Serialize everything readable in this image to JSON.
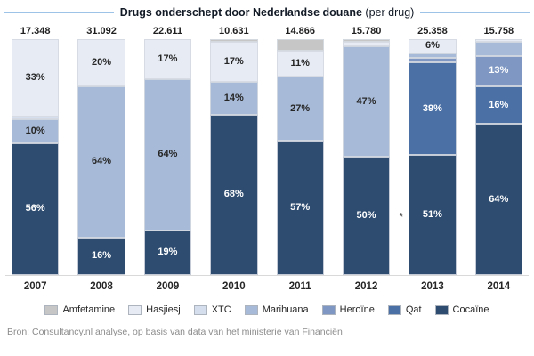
{
  "title": {
    "main": "Drugs onderschept door Nederlandse douane",
    "suffix": " (per drug)"
  },
  "source": "Bron: Consultancy.nl analyse, op basis van data van het ministerie van Financiën",
  "colors": {
    "header_rule": "#9dc3e6",
    "axis_line": "#d9d9d9",
    "label_dark": "#262626",
    "label_light": "#ffffff",
    "source_text": "#8c8c8c"
  },
  "chart_data": {
    "type": "bar",
    "stacked": true,
    "percent_stacked": true,
    "title": "Drugs onderschept door Nederlandse douane (per drug)",
    "categories": [
      "2007",
      "2008",
      "2009",
      "2010",
      "2011",
      "2012",
      "2013",
      "2014"
    ],
    "totals": [
      "17.348",
      "31.092",
      "22.611",
      "10.631",
      "14.866",
      "15.780",
      "25.358",
      "15.758"
    ],
    "legend_position": "bottom",
    "stack_order": "first series on top, last series at bottom",
    "footnote": {
      "category": "2012",
      "marker": "*"
    },
    "series": [
      {
        "name": "Amfetamine",
        "color": "#c6c6c6",
        "label_color": "#262626",
        "values": [
          0,
          0,
          0,
          1,
          5,
          1,
          0,
          0
        ],
        "labels": [
          "",
          "",
          "",
          "",
          "",
          "",
          "",
          ""
        ]
      },
      {
        "name": "Hasjiesj",
        "color": "#e6ebf4",
        "label_color": "#262626",
        "values": [
          33,
          20,
          17,
          17,
          11,
          2,
          6,
          1
        ],
        "labels": [
          "33%",
          "20%",
          "17%",
          "17%",
          "11%",
          "",
          "6%",
          ""
        ]
      },
      {
        "name": "XTC",
        "color": "#d5deec",
        "label_color": "#262626",
        "values": [
          1,
          0,
          0,
          0,
          0,
          0,
          0,
          0
        ],
        "labels": [
          "",
          "",
          "",
          "",
          "",
          "",
          "",
          ""
        ]
      },
      {
        "name": "Marihuana",
        "color": "#a7bad7",
        "label_color": "#262626",
        "values": [
          10,
          64,
          64,
          14,
          27,
          47,
          2,
          6
        ],
        "labels": [
          "10%",
          "64%",
          "64%",
          "14%",
          "27%",
          "47%",
          "",
          ""
        ]
      },
      {
        "name": "Heroïne",
        "color": "#7e97c3",
        "label_color": "#ffffff",
        "values": [
          0,
          0,
          0,
          0,
          0,
          0,
          2,
          13
        ],
        "labels": [
          "",
          "",
          "",
          "",
          "",
          "",
          "",
          "13%"
        ]
      },
      {
        "name": "Qat",
        "color": "#4a70a6",
        "label_color": "#ffffff",
        "values": [
          0,
          0,
          0,
          0,
          0,
          0,
          39,
          16
        ],
        "labels": [
          "",
          "",
          "",
          "",
          "",
          "",
          "39%",
          "16%"
        ]
      },
      {
        "name": "Cocaïne",
        "color": "#2e4c70",
        "label_color": "#ffffff",
        "values": [
          56,
          16,
          19,
          68,
          57,
          50,
          51,
          64
        ],
        "labels": [
          "56%",
          "16%",
          "19%",
          "68%",
          "57%",
          "50%",
          "51%",
          "64%"
        ]
      }
    ]
  }
}
